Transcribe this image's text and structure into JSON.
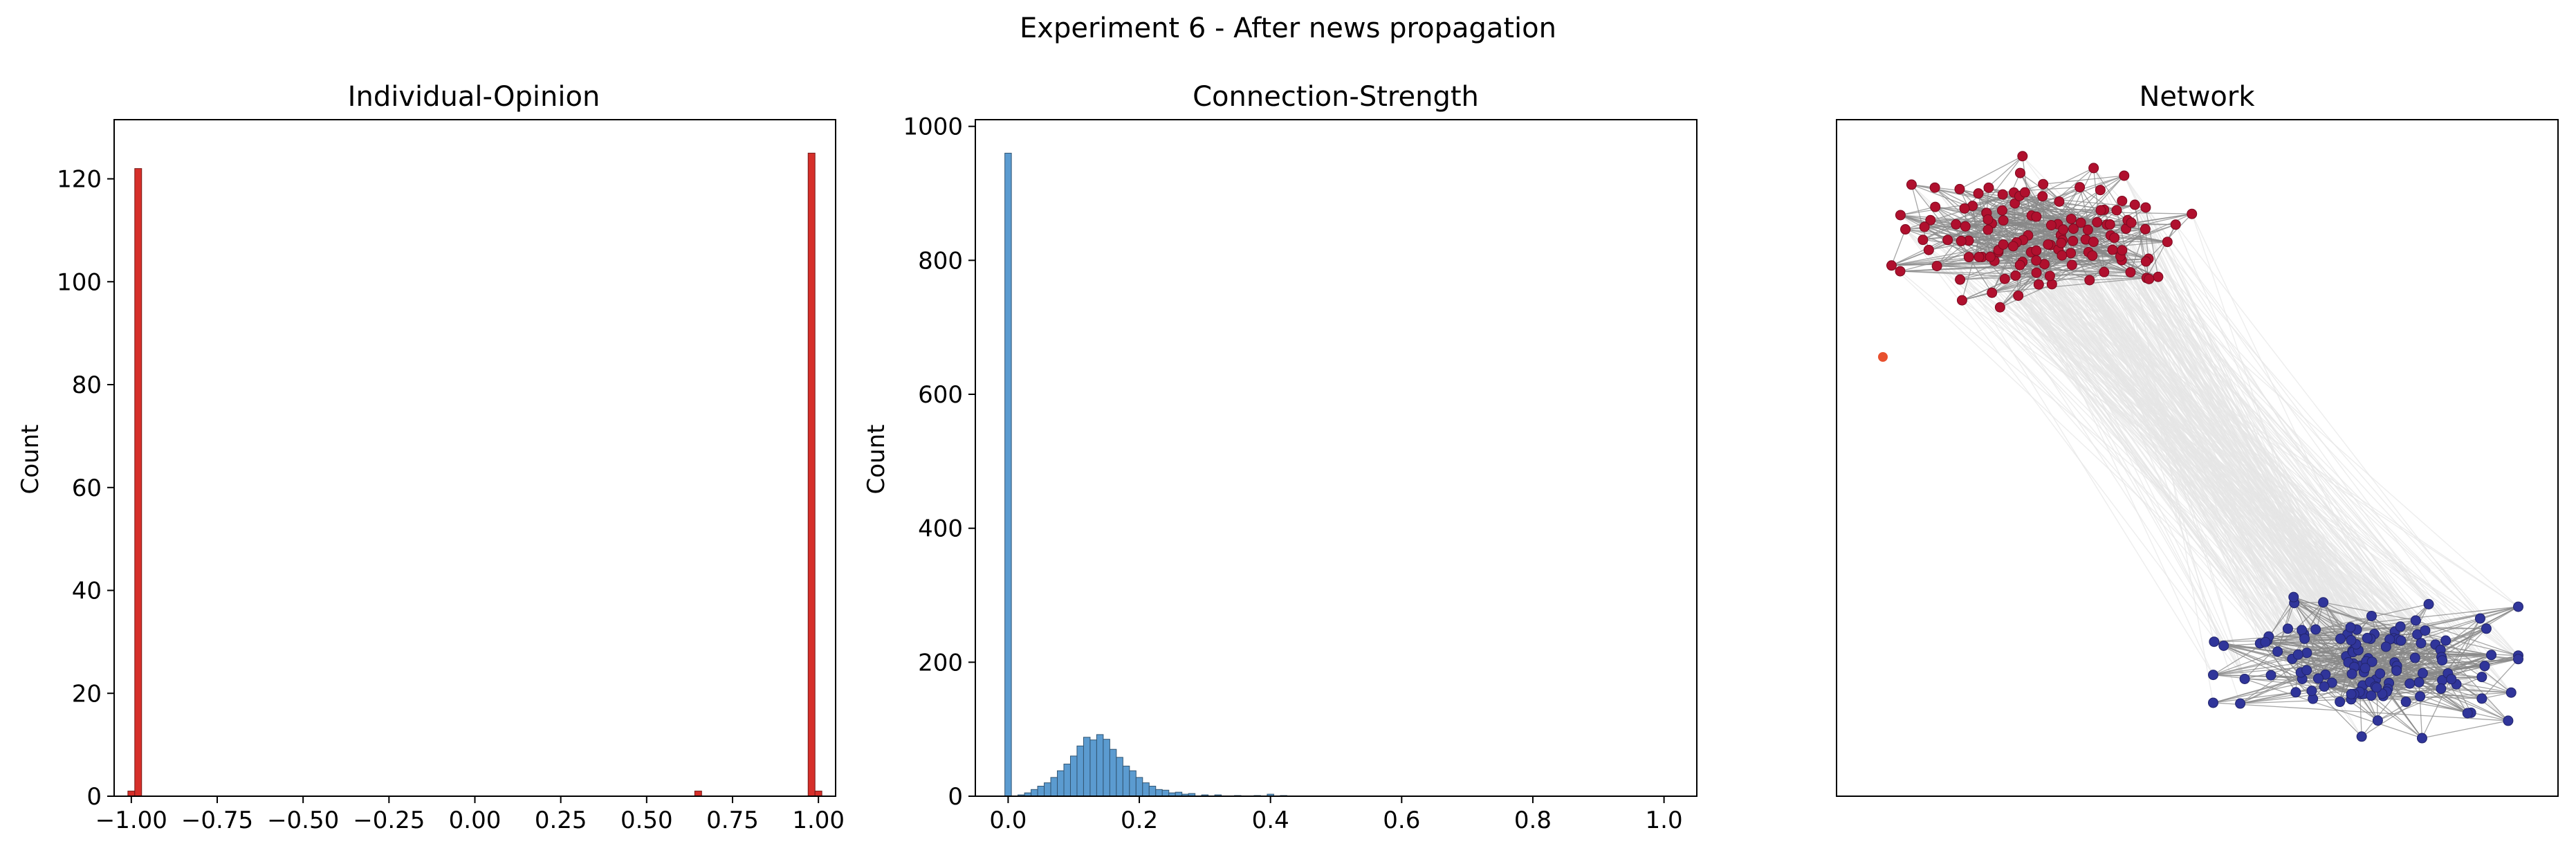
{
  "figure": {
    "suptitle": "Experiment 6 - After news propagation"
  },
  "chart_data": [
    {
      "type": "bar",
      "title": "Individual-Opinion",
      "xlabel": "",
      "ylabel": "Count",
      "xlim": [
        -1.05,
        1.05
      ],
      "ylim": [
        0,
        131.5
      ],
      "xticks": [
        -1.0,
        -0.75,
        -0.5,
        -0.25,
        0.0,
        0.25,
        0.5,
        0.75,
        1.0
      ],
      "xtick_labels": [
        "−1.00",
        "−0.75",
        "−0.50",
        "−0.25",
        "0.00",
        "0.25",
        "0.50",
        "0.75",
        "1.00"
      ],
      "yticks": [
        0,
        20,
        40,
        60,
        80,
        100,
        120
      ],
      "ytick_labels": [
        "0",
        "20",
        "40",
        "60",
        "80",
        "100",
        "120"
      ],
      "bin_width": 0.02,
      "bins": [
        {
          "x": -1.0,
          "count": 1
        },
        {
          "x": -0.98,
          "count": 122
        },
        {
          "x": 0.65,
          "count": 1
        },
        {
          "x": 0.98,
          "count": 125
        },
        {
          "x": 1.0,
          "count": 1
        }
      ],
      "color": "#d62f2a",
      "grid": false
    },
    {
      "type": "bar",
      "title": "Connection-Strength",
      "xlabel": "",
      "ylabel": "Count",
      "xlim": [
        -0.05,
        1.05
      ],
      "ylim": [
        0,
        1010
      ],
      "xticks": [
        0.0,
        0.2,
        0.4,
        0.6,
        0.8,
        1.0
      ],
      "xtick_labels": [
        "0.0",
        "0.2",
        "0.4",
        "0.6",
        "0.8",
        "1.0"
      ],
      "yticks": [
        0,
        200,
        400,
        600,
        800,
        1000
      ],
      "ytick_labels": [
        "0",
        "200",
        "400",
        "600",
        "800",
        "1000"
      ],
      "bin_width": 0.01,
      "bins": [
        {
          "x": 0.0,
          "count": 960
        },
        {
          "x": 0.02,
          "count": 2
        },
        {
          "x": 0.03,
          "count": 5
        },
        {
          "x": 0.04,
          "count": 10
        },
        {
          "x": 0.05,
          "count": 15
        },
        {
          "x": 0.06,
          "count": 20
        },
        {
          "x": 0.07,
          "count": 28
        },
        {
          "x": 0.08,
          "count": 38
        },
        {
          "x": 0.09,
          "count": 48
        },
        {
          "x": 0.1,
          "count": 60
        },
        {
          "x": 0.11,
          "count": 75
        },
        {
          "x": 0.12,
          "count": 88
        },
        {
          "x": 0.13,
          "count": 84
        },
        {
          "x": 0.14,
          "count": 92
        },
        {
          "x": 0.15,
          "count": 85
        },
        {
          "x": 0.16,
          "count": 70
        },
        {
          "x": 0.17,
          "count": 58
        },
        {
          "x": 0.18,
          "count": 45
        },
        {
          "x": 0.19,
          "count": 38
        },
        {
          "x": 0.2,
          "count": 28
        },
        {
          "x": 0.21,
          "count": 20
        },
        {
          "x": 0.22,
          "count": 15
        },
        {
          "x": 0.23,
          "count": 10
        },
        {
          "x": 0.24,
          "count": 9
        },
        {
          "x": 0.25,
          "count": 5
        },
        {
          "x": 0.26,
          "count": 6
        },
        {
          "x": 0.27,
          "count": 3
        },
        {
          "x": 0.28,
          "count": 4
        },
        {
          "x": 0.3,
          "count": 2
        },
        {
          "x": 0.32,
          "count": 2
        },
        {
          "x": 0.35,
          "count": 1
        },
        {
          "x": 0.38,
          "count": 1
        },
        {
          "x": 0.4,
          "count": 3
        },
        {
          "x": 0.42,
          "count": 1
        }
      ],
      "color": "#5b9bd0",
      "grid": false
    },
    {
      "type": "network",
      "title": "Network",
      "axes": false,
      "clusters": [
        {
          "name": "",
          "nodes_approx": 125,
          "color": "#b0102e"
        },
        {
          "name": "",
          "nodes_approx": 125,
          "color": "#30359a"
        }
      ],
      "isolated_nodes": [
        {
          "color": "#e8502e"
        }
      ],
      "edge_color_within": "#888888",
      "edge_color_between": "#e6e6e6"
    }
  ]
}
